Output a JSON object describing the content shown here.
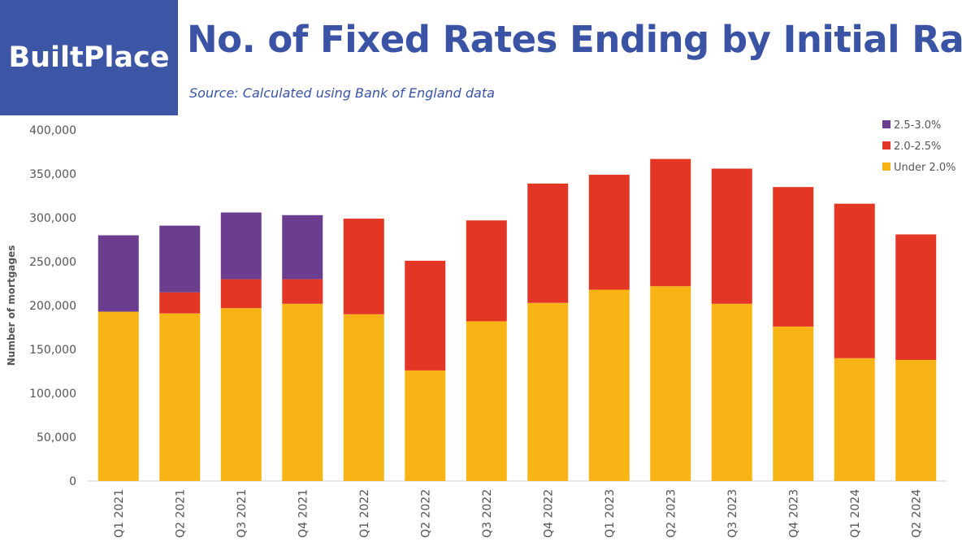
{
  "logo": "BuiltPlace",
  "chart_data": {
    "type": "bar",
    "stacked": true,
    "title": "No. of Fixed Rates Ending by Initial Rate",
    "subtitle": "Source: Calculated using Bank of England data",
    "ylabel": "Number of mortgages",
    "xlabel": "",
    "ylim": [
      0,
      400000
    ],
    "yticks": [
      0,
      50000,
      100000,
      150000,
      200000,
      250000,
      300000,
      350000,
      400000
    ],
    "ytick_labels": [
      "0",
      "50,000",
      "100,000",
      "150,000",
      "200,000",
      "250,000",
      "300,000",
      "350,000",
      "400,000"
    ],
    "legend_position": "top-right",
    "categories": [
      "Q1 2021",
      "Q2 2021",
      "Q3 2021",
      "Q4 2021",
      "Q1 2022",
      "Q2 2022",
      "Q3 2022",
      "Q4 2022",
      "Q1 2023",
      "Q2 2023",
      "Q3 2023",
      "Q4 2023",
      "Q1 2024",
      "Q2 2024"
    ],
    "series": [
      {
        "name": "Under 2.0%",
        "color": "#f8b314",
        "values": [
          193000,
          191000,
          197000,
          202000,
          190000,
          126000,
          182000,
          203000,
          218000,
          222000,
          202000,
          176000,
          140000,
          138000
        ]
      },
      {
        "name": "2.0-2.5%",
        "color": "#e33625",
        "values": [
          0,
          24000,
          33000,
          28000,
          109000,
          125000,
          115000,
          136000,
          131000,
          145000,
          154000,
          159000,
          176000,
          143000
        ]
      },
      {
        "name": "2.5-3.0%",
        "color": "#6a3d8f",
        "values": [
          87000,
          76000,
          76000,
          73000,
          0,
          0,
          0,
          0,
          0,
          0,
          0,
          0,
          0,
          0
        ]
      }
    ]
  }
}
